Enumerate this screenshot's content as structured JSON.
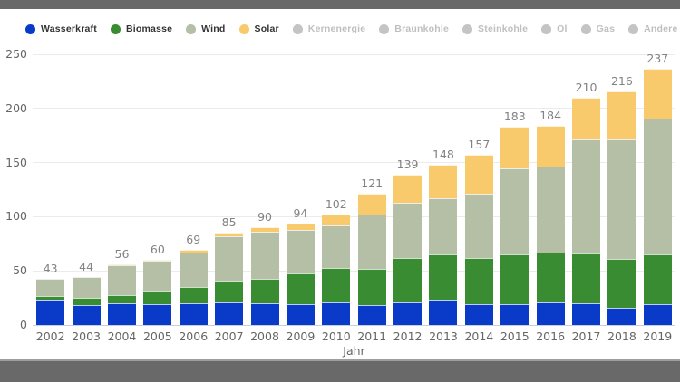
{
  "frame": {
    "band_color": "#696969",
    "band_divider_color": "#9e9e9e",
    "background": "#ffffff"
  },
  "legend": {
    "active_text_color": "#333333",
    "inactive_text_color": "#bfbfbf",
    "inactive_dot_color": "#c4c4c4",
    "items": [
      {
        "label": "Wasserkraft",
        "color": "#0a3bc8",
        "active": true
      },
      {
        "label": "Biomasse",
        "color": "#3a8c32",
        "active": true
      },
      {
        "label": "Wind",
        "color": "#b4bfa6",
        "active": true
      },
      {
        "label": "Solar",
        "color": "#f9ca6c",
        "active": true
      },
      {
        "label": "Kernenergie",
        "color": "#c4c4c4",
        "active": false
      },
      {
        "label": "Braunkohle",
        "color": "#c4c4c4",
        "active": false
      },
      {
        "label": "Steinkohle",
        "color": "#c4c4c4",
        "active": false
      },
      {
        "label": "Öl",
        "color": "#c4c4c4",
        "active": false
      },
      {
        "label": "Gas",
        "color": "#c4c4c4",
        "active": false
      },
      {
        "label": "Andere",
        "color": "#c4c4c4",
        "active": false
      }
    ]
  },
  "chart_data": {
    "type": "bar",
    "stacked": true,
    "categories": [
      "2002",
      "2003",
      "2004",
      "2005",
      "2006",
      "2007",
      "2008",
      "2009",
      "2010",
      "2011",
      "2012",
      "2013",
      "2014",
      "2015",
      "2016",
      "2017",
      "2018",
      "2019"
    ],
    "series": [
      {
        "name": "Wasserkraft",
        "color": "#0a3bc8",
        "values": [
          23,
          18,
          20,
          19,
          20,
          21,
          20,
          19,
          21,
          18,
          21,
          23,
          19,
          19,
          21,
          20,
          16,
          19
        ]
      },
      {
        "name": "Biomasse",
        "color": "#3a8c32",
        "values": [
          4,
          7,
          8,
          12,
          15,
          20,
          23,
          29,
          32,
          34,
          41,
          42,
          43,
          46,
          46,
          46,
          45,
          46
        ]
      },
      {
        "name": "Wind",
        "color": "#b4bfa6",
        "values": [
          16,
          19,
          27,
          28,
          32,
          41,
          43,
          40,
          39,
          50,
          51,
          52,
          59,
          80,
          79,
          105,
          110,
          126
        ]
      },
      {
        "name": "Solar",
        "color": "#f9ca6c",
        "values": [
          0,
          0,
          1,
          1,
          2,
          3,
          4,
          6,
          10,
          19,
          26,
          31,
          36,
          38,
          38,
          39,
          45,
          46
        ]
      }
    ],
    "totals": [
      43,
      44,
      56,
      60,
      69,
      85,
      90,
      94,
      102,
      121,
      139,
      148,
      157,
      183,
      184,
      210,
      216,
      237
    ],
    "title": "",
    "xlabel": "Jahr",
    "ylabel": "",
    "ylim": [
      0,
      250
    ],
    "yticks": [
      0,
      50,
      100,
      150,
      200,
      250
    ],
    "grid": true,
    "legend_position": "top",
    "gridline_color": "#ebebeb",
    "baseline_color": "#c8cedf",
    "total_label_color": "#828282",
    "axis_label_color": "#666666"
  }
}
